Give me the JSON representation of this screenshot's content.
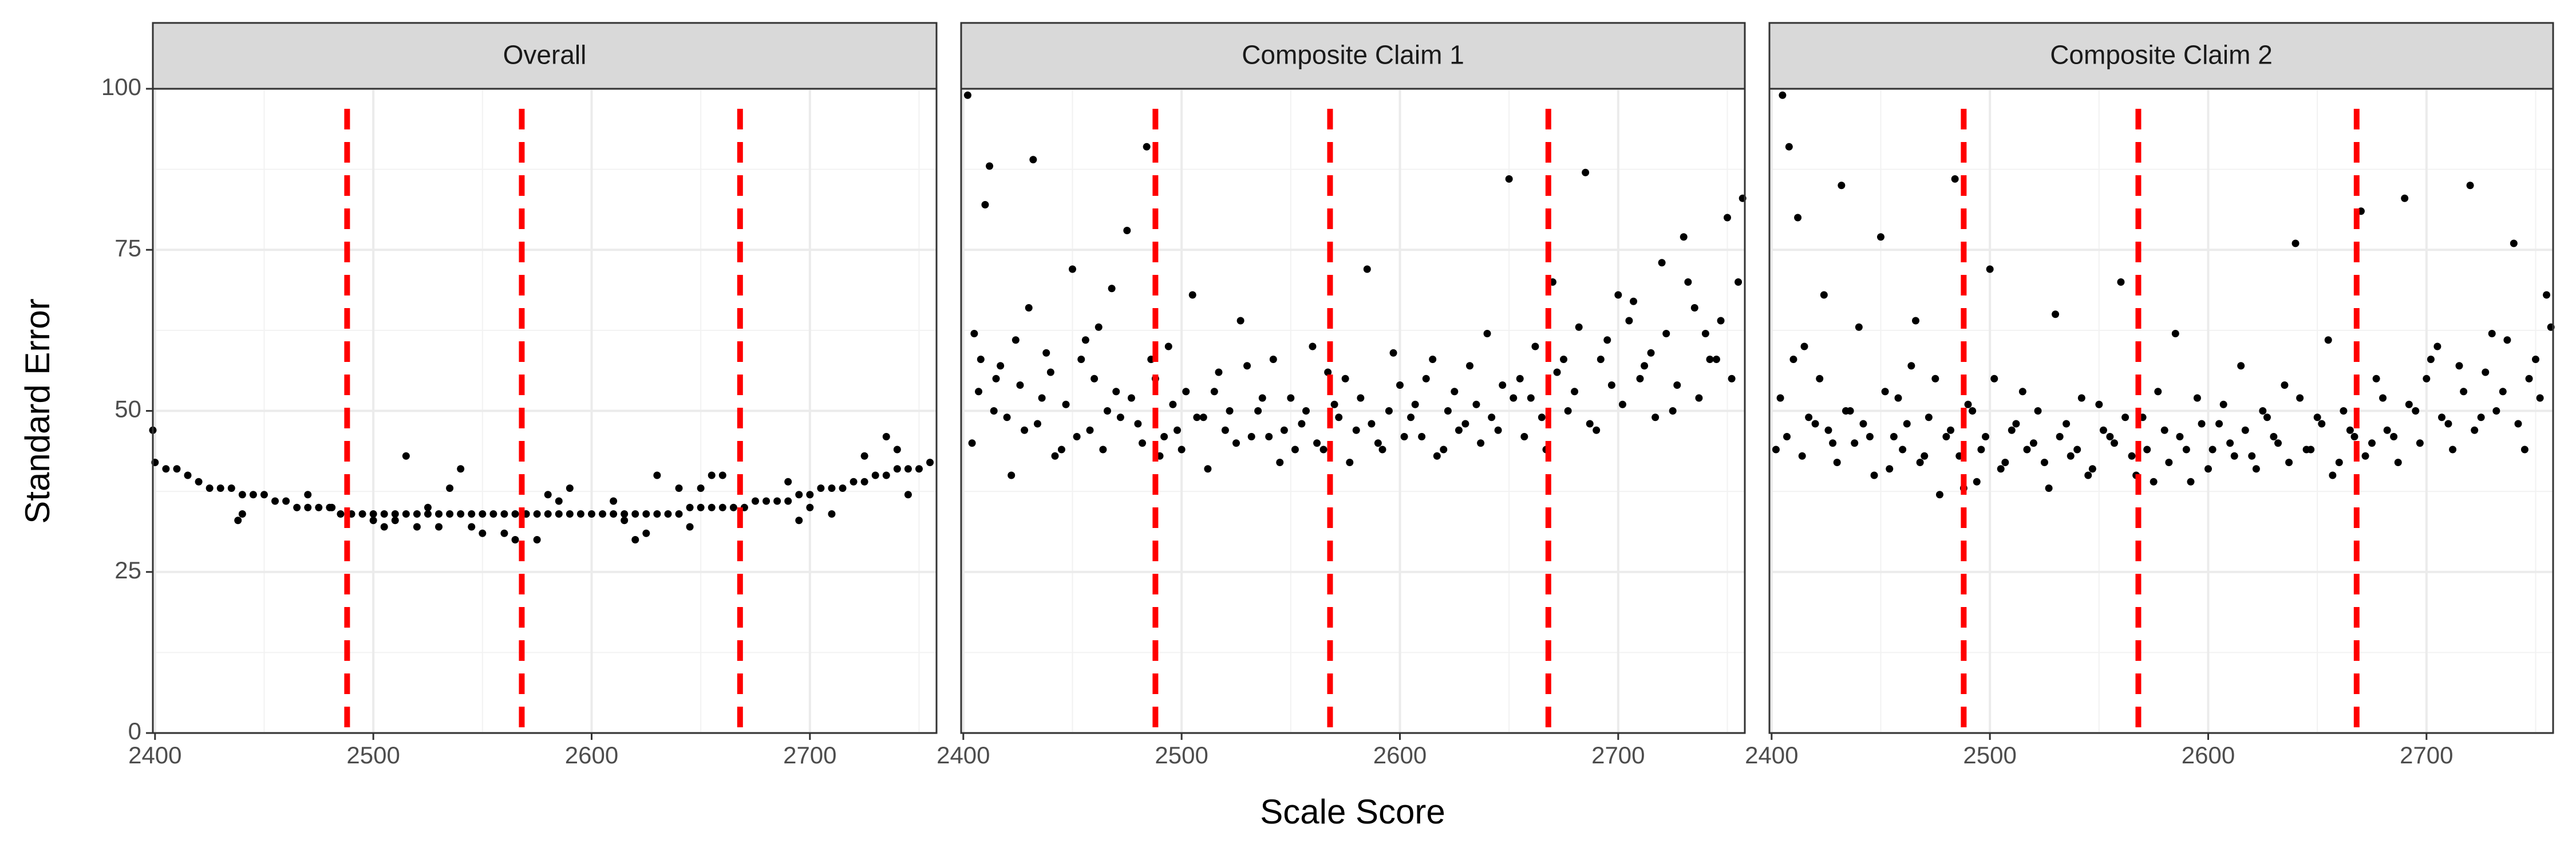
{
  "chart_data": {
    "type": "scatter",
    "x_label": "Scale Score",
    "y_label": "Standard Error",
    "xlim": [
      2399,
      2758
    ],
    "ylim": [
      0,
      100
    ],
    "xticks": [
      2400,
      2500,
      2600,
      2700
    ],
    "yticks": [
      0,
      25,
      50,
      75,
      100
    ],
    "x_minor_grid": [
      2450,
      2550,
      2650,
      2750
    ],
    "y_minor_grid": [
      12.5,
      37.5,
      62.5,
      87.5
    ],
    "grid": true,
    "point_color": "#000000",
    "cut_scores": [
      2488,
      2568,
      2668
    ],
    "cut_color": "#ff0000",
    "panels": [
      {
        "title": "Overall",
        "series": [
          {
            "x": [
              2400,
              2405,
              2410,
              2415,
              2420,
              2425,
              2430,
              2435,
              2440,
              2445,
              2450,
              2455,
              2460,
              2465,
              2470,
              2475,
              2480,
              2485,
              2490,
              2495,
              2500,
              2505,
              2510,
              2515,
              2520,
              2525,
              2530,
              2535,
              2540,
              2545,
              2550,
              2555,
              2560,
              2565,
              2570,
              2575,
              2580,
              2585,
              2590,
              2595,
              2600,
              2605,
              2610,
              2615,
              2620,
              2625,
              2630,
              2635,
              2640,
              2645,
              2650,
              2655,
              2660,
              2665,
              2670,
              2675,
              2680,
              2685,
              2690,
              2695,
              2700,
              2705,
              2710,
              2715,
              2720,
              2725,
              2730,
              2735,
              2740,
              2745,
              2750,
              2755
            ],
            "values": [
              42,
              41,
              41,
              40,
              39,
              38,
              38,
              38,
              37,
              37,
              37,
              36,
              36,
              35,
              35,
              35,
              35,
              34,
              34,
              34,
              34,
              34,
              34,
              34,
              34,
              34,
              34,
              34,
              34,
              34,
              34,
              34,
              34,
              34,
              34,
              34,
              34,
              34,
              34,
              34,
              34,
              34,
              34,
              34,
              34,
              34,
              34,
              34,
              34,
              35,
              35,
              35,
              35,
              35,
              35,
              36,
              36,
              36,
              36,
              37,
              37,
              38,
              38,
              38,
              39,
              39,
              40,
              40,
              41,
              41,
              41,
              42
            ]
          },
          {
            "x": [
              2399,
              2438,
              2440,
              2470,
              2481,
              2500,
              2505,
              2510,
              2515,
              2520,
              2525,
              2530,
              2535,
              2540,
              2545,
              2550,
              2560,
              2565,
              2570,
              2575,
              2580,
              2585,
              2590,
              2610,
              2615,
              2620,
              2625,
              2630,
              2640,
              2645,
              2650,
              2655,
              2660,
              2690,
              2695,
              2700,
              2710,
              2725,
              2735,
              2740,
              2745
            ],
            "values": [
              47,
              33,
              34,
              37,
              35,
              33,
              32,
              33,
              43,
              32,
              35,
              32,
              38,
              41,
              32,
              31,
              31,
              30,
              34,
              30,
              37,
              36,
              38,
              36,
              33,
              30,
              31,
              40,
              38,
              32,
              38,
              40,
              40,
              39,
              33,
              35,
              34,
              43,
              46,
              44,
              37
            ]
          }
        ]
      },
      {
        "title": "Composite Claim 1",
        "series": [
          {
            "x": [
              2402,
              2405,
              2408,
              2412,
              2415,
              2420,
              2424,
              2428,
              2432,
              2436,
              2440,
              2445,
              2450,
              2454,
              2458,
              2462,
              2466,
              2470,
              2475,
              2480,
              2484,
              2488,
              2492,
              2496,
              2500,
              2505,
              2510,
              2515,
              2520,
              2525,
              2530,
              2535,
              2540,
              2545,
              2550,
              2555,
              2560,
              2565,
              2570,
              2575,
              2580,
              2585,
              2590,
              2595,
              2600,
              2605,
              2610,
              2615,
              2620,
              2625,
              2630,
              2635,
              2640,
              2645,
              2650,
              2655,
              2660,
              2665,
              2670,
              2675,
              2680,
              2685,
              2690,
              2695,
              2700,
              2705,
              2710,
              2715,
              2720,
              2725,
              2730,
              2735,
              2740,
              2745,
              2750,
              2755
            ],
            "values": [
              99,
              62,
              58,
              88,
              55,
              49,
              61,
              47,
              89,
              52,
              56,
              44,
              72,
              58,
              47,
              63,
              50,
              53,
              78,
              48,
              91,
              55,
              46,
              51,
              44,
              68,
              49,
              53,
              47,
              45,
              57,
              50,
              46,
              42,
              52,
              48,
              60,
              44,
              51,
              55,
              47,
              72,
              45,
              50,
              54,
              49,
              46,
              58,
              44,
              53,
              48,
              51,
              62,
              47,
              86,
              55,
              52,
              49,
              70,
              58,
              53,
              87,
              47,
              61,
              68,
              64,
              55,
              59,
              73,
              50,
              77,
              66,
              62,
              58,
              80,
              70
            ]
          },
          {
            "x": [
              2404,
              2407,
              2410,
              2414,
              2417,
              2422,
              2426,
              2430,
              2434,
              2438,
              2442,
              2447,
              2452,
              2456,
              2460,
              2464,
              2468,
              2472,
              2477,
              2482,
              2486,
              2490,
              2494,
              2498,
              2502,
              2507,
              2512,
              2517,
              2522,
              2527,
              2532,
              2537,
              2542,
              2547,
              2552,
              2557,
              2562,
              2567,
              2572,
              2577,
              2582,
              2587,
              2592,
              2597,
              2602,
              2607,
              2612,
              2617,
              2622,
              2627,
              2632,
              2637,
              2642,
              2647,
              2652,
              2657,
              2662,
              2667,
              2672,
              2677,
              2682,
              2687,
              2692,
              2697,
              2702,
              2707,
              2712,
              2717,
              2722,
              2727,
              2732,
              2737,
              2742,
              2747,
              2752,
              2757
            ],
            "values": [
              45,
              53,
              82,
              50,
              57,
              40,
              54,
              66,
              48,
              59,
              43,
              51,
              46,
              61,
              55,
              44,
              69,
              49,
              52,
              45,
              58,
              43,
              60,
              47,
              53,
              49,
              41,
              56,
              50,
              64,
              46,
              52,
              58,
              47,
              44,
              50,
              45,
              56,
              49,
              42,
              52,
              48,
              44,
              59,
              46,
              51,
              55,
              43,
              50,
              47,
              57,
              45,
              49,
              54,
              52,
              46,
              60,
              44,
              56,
              50,
              63,
              48,
              58,
              54,
              51,
              67,
              57,
              49,
              62,
              54,
              70,
              52,
              58,
              64,
              55,
              83
            ]
          }
        ]
      },
      {
        "title": "Composite Claim 2",
        "series": [
          {
            "x": [
              2402,
              2405,
              2408,
              2412,
              2415,
              2420,
              2424,
              2428,
              2432,
              2436,
              2440,
              2445,
              2450,
              2454,
              2458,
              2462,
              2466,
              2470,
              2475,
              2480,
              2484,
              2488,
              2492,
              2496,
              2500,
              2505,
              2510,
              2515,
              2520,
              2525,
              2530,
              2535,
              2540,
              2545,
              2550,
              2555,
              2560,
              2565,
              2570,
              2575,
              2580,
              2585,
              2590,
              2595,
              2600,
              2605,
              2610,
              2615,
              2620,
              2625,
              2630,
              2635,
              2640,
              2645,
              2650,
              2655,
              2660,
              2665,
              2670,
              2675,
              2680,
              2685,
              2690,
              2695,
              2700,
              2705,
              2710,
              2715,
              2720,
              2725,
              2730,
              2735,
              2740,
              2745,
              2750,
              2755
            ],
            "values": [
              44,
              99,
              91,
              80,
              60,
              48,
              68,
              45,
              85,
              50,
              63,
              46,
              77,
              41,
              52,
              48,
              64,
              43,
              55,
              46,
              86,
              38,
              50,
              44,
              72,
              41,
              47,
              53,
              45,
              42,
              65,
              48,
              44,
              40,
              51,
              46,
              70,
              43,
              49,
              39,
              47,
              62,
              44,
              52,
              41,
              48,
              45,
              57,
              43,
              50,
              46,
              54,
              76,
              44,
              49,
              61,
              42,
              47,
              81,
              45,
              52,
              46,
              83,
              50,
              55,
              60,
              48,
              57,
              85,
              49,
              62,
              53,
              76,
              44,
              58,
              68
            ]
          },
          {
            "x": [
              2404,
              2407,
              2410,
              2414,
              2417,
              2422,
              2426,
              2430,
              2434,
              2438,
              2442,
              2447,
              2452,
              2456,
              2460,
              2464,
              2468,
              2472,
              2477,
              2482,
              2486,
              2490,
              2494,
              2498,
              2502,
              2507,
              2512,
              2517,
              2522,
              2527,
              2532,
              2537,
              2542,
              2547,
              2552,
              2557,
              2562,
              2567,
              2572,
              2577,
              2582,
              2587,
              2592,
              2597,
              2602,
              2607,
              2612,
              2617,
              2622,
              2627,
              2632,
              2637,
              2642,
              2647,
              2652,
              2657,
              2662,
              2667,
              2672,
              2677,
              2682,
              2687,
              2692,
              2697,
              2702,
              2707,
              2712,
              2717,
              2722,
              2727,
              2732,
              2737,
              2742,
              2747,
              2752,
              2757
            ],
            "values": [
              52,
              46,
              58,
              43,
              49,
              55,
              47,
              42,
              50,
              45,
              48,
              40,
              53,
              46,
              44,
              57,
              42,
              49,
              37,
              47,
              43,
              51,
              39,
              46,
              55,
              42,
              48,
              44,
              50,
              38,
              46,
              43,
              52,
              41,
              47,
              45,
              49,
              40,
              44,
              53,
              42,
              46,
              39,
              48,
              44,
              51,
              43,
              47,
              41,
              49,
              45,
              42,
              52,
              44,
              48,
              40,
              50,
              46,
              43,
              55,
              47,
              42,
              51,
              45,
              58,
              49,
              44,
              53,
              47,
              56,
              50,
              61,
              48,
              55,
              52,
              63
            ]
          }
        ]
      }
    ]
  }
}
